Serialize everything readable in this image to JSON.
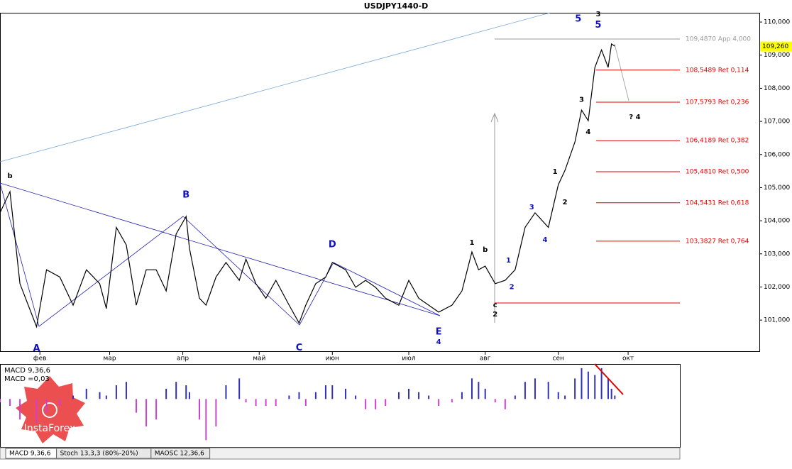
{
  "chart_data": {
    "type": "line",
    "title": "USDJPY1440-D",
    "color": "#000000",
    "xlim": [
      0,
      205
    ],
    "ylim": [
      100.06,
      110.28
    ],
    "xticks": [
      {
        "value": 12,
        "label": "фев"
      },
      {
        "value": 33,
        "label": "мар"
      },
      {
        "value": 55,
        "label": "апр"
      },
      {
        "value": 78,
        "label": "май"
      },
      {
        "value": 100,
        "label": "июн"
      },
      {
        "value": 123,
        "label": "июл"
      },
      {
        "value": 146,
        "label": "авг"
      },
      {
        "value": 168,
        "label": "сен"
      },
      {
        "value": 189,
        "label": "окт"
      }
    ],
    "yticks": [
      {
        "value": 101,
        "label": "101,000"
      },
      {
        "value": 102,
        "label": "102,000"
      },
      {
        "value": 103,
        "label": "103,000"
      },
      {
        "value": 104,
        "label": "104,000"
      },
      {
        "value": 105,
        "label": "105,000"
      },
      {
        "value": 106,
        "label": "106,000"
      },
      {
        "value": 107,
        "label": "107,000"
      },
      {
        "value": 108,
        "label": "108,000"
      },
      {
        "value": 109,
        "label": "109,000"
      },
      {
        "value": 110,
        "label": "110,000"
      }
    ],
    "x": [
      0,
      3,
      6,
      11,
      14,
      18,
      22,
      26,
      30,
      32,
      35,
      38,
      41,
      44,
      47,
      50,
      53,
      56,
      57,
      60,
      62,
      65,
      68,
      72,
      74,
      77,
      80,
      83,
      87,
      90,
      92,
      95,
      98,
      100,
      104,
      107,
      110,
      113,
      116,
      120,
      123,
      126,
      129,
      132,
      136,
      139,
      142,
      144,
      146,
      149,
      152,
      155,
      158,
      161,
      165,
      168,
      170,
      173,
      175,
      177,
      179,
      181,
      183,
      184,
      185
    ],
    "values": [
      104.24,
      104.88,
      102.1,
      100.8,
      102.52,
      102.3,
      101.45,
      102.52,
      102.1,
      101.35,
      103.8,
      103.27,
      101.45,
      102.52,
      102.52,
      101.88,
      103.6,
      104.13,
      103.17,
      101.66,
      101.45,
      102.3,
      102.74,
      102.2,
      102.84,
      102.1,
      101.66,
      102.2,
      101.45,
      100.91,
      101.45,
      102.1,
      102.3,
      102.74,
      102.52,
      101.99,
      102.2,
      101.99,
      101.66,
      101.45,
      102.2,
      101.66,
      101.45,
      101.24,
      101.45,
      101.88,
      103.06,
      102.52,
      102.63,
      102.1,
      102.2,
      102.52,
      103.8,
      104.24,
      103.8,
      105.09,
      105.52,
      106.38,
      107.34,
      107.02,
      108.63,
      109.16,
      108.63,
      109.34,
      109.27
    ],
    "last_price": {
      "value": 109.26,
      "label": "109,260"
    },
    "levels": [
      {
        "value": 109.487,
        "label": "109,4870 App 4,000",
        "color": "#999999"
      },
      {
        "value": 108.5489,
        "label": "108,5489 Ret 0,114",
        "color": "#e00000"
      },
      {
        "value": 107.5793,
        "label": "107,5793 Ret 0,236",
        "color": "#e00000"
      },
      {
        "value": 106.4189,
        "label": "106,4189 Ret 0,382",
        "color": "#e00000"
      },
      {
        "value": 105.481,
        "label": "105,4810 Ret 0,500",
        "color": "#e00000"
      },
      {
        "value": 104.5431,
        "label": "104,5431 Ret 0,618",
        "color": "#e00000"
      },
      {
        "value": 103.3827,
        "label": "103,3827 Ret 0,764",
        "color": "#e00000"
      }
    ],
    "annotations": [
      {
        "text": "A",
        "x": 11,
        "y": 100.14,
        "color": "#1010c0"
      },
      {
        "text": "B",
        "x": 56,
        "y": 104.77,
        "color": "#1010c0"
      },
      {
        "text": "C",
        "x": 90,
        "y": 100.16,
        "color": "#1010c0"
      },
      {
        "text": "D",
        "x": 100,
        "y": 103.27,
        "color": "#1010c0"
      },
      {
        "text": "E",
        "x": 132,
        "y": 100.64,
        "color": "#1010c0"
      },
      {
        "text": "4",
        "x": 132,
        "y": 100.34,
        "color": "#1010c0"
      },
      {
        "text": "5",
        "x": 174,
        "y": 110.09,
        "color": "#1010c0"
      },
      {
        "text": "3",
        "x": 180,
        "y": 110.24,
        "color": "#000000"
      },
      {
        "text": "5",
        "x": 180,
        "y": 109.91,
        "color": "#1010c0"
      },
      {
        "text": "? 4",
        "x": 191,
        "y": 107.13,
        "color": "#000000"
      },
      {
        "text": "2",
        "x": 149,
        "y": 101.17,
        "color": "#000000"
      },
      {
        "text": "c",
        "x": 149,
        "y": 101.45,
        "color": "#000000"
      },
      {
        "text": "b",
        "x": 3,
        "y": 105.35,
        "color": "#000000"
      },
      {
        "text": "3",
        "x": 175,
        "y": 107.66,
        "color": "#000000"
      },
      {
        "text": "4",
        "x": 177,
        "y": 106.68,
        "color": "#000000"
      },
      {
        "text": "1",
        "x": 167,
        "y": 105.48,
        "color": "#000000"
      },
      {
        "text": "2",
        "x": 170,
        "y": 104.56,
        "color": "#000000"
      },
      {
        "text": "3",
        "x": 160,
        "y": 104.41,
        "color": "#1010c0"
      },
      {
        "text": "4",
        "x": 164,
        "y": 103.42,
        "color": "#1010c0"
      },
      {
        "text": "1",
        "x": 153,
        "y": 102.8,
        "color": "#1010c0"
      },
      {
        "text": "2",
        "x": 154,
        "y": 102.0,
        "color": "#1010c0"
      },
      {
        "text": "1",
        "x": 142,
        "y": 103.34,
        "color": "#000000"
      },
      {
        "text": "b",
        "x": 146,
        "y": 103.12,
        "color": "#000000"
      }
    ],
    "macd": {
      "label": "MACD 9,36,6",
      "value_label": "MACD =0,03",
      "ylim": [
        -0.7,
        0.5
      ],
      "values": [
        -0.05,
        -0.1,
        -0.3,
        -0.35,
        -0.2,
        -0.1,
        0.05,
        0.15,
        0.1,
        0.05,
        0.2,
        0.25,
        -0.2,
        -0.4,
        -0.3,
        0.15,
        0.25,
        0.2,
        0.1,
        -0.3,
        -0.6,
        -0.4,
        0.2,
        0.3,
        -0.05,
        -0.1,
        -0.1,
        -0.1,
        0.05,
        0.1,
        -0.1,
        0.1,
        0.2,
        0.2,
        0.15,
        0.05,
        -0.15,
        -0.15,
        -0.1,
        0.1,
        0.15,
        0.1,
        0.05,
        -0.1,
        -0.05,
        0.1,
        0.3,
        0.25,
        0.15,
        -0.05,
        -0.15,
        0.05,
        0.25,
        0.3,
        0.25,
        0.1,
        0.05,
        0.3,
        0.45,
        0.4,
        0.35,
        0.45,
        0.3,
        0.15,
        0.05
      ]
    },
    "tabs": [
      "MACD 9,36,6",
      "Stoch 13,3,3 (80%-20%)",
      "MAOSC 12,36,6"
    ],
    "watermark": "InstaForex"
  }
}
